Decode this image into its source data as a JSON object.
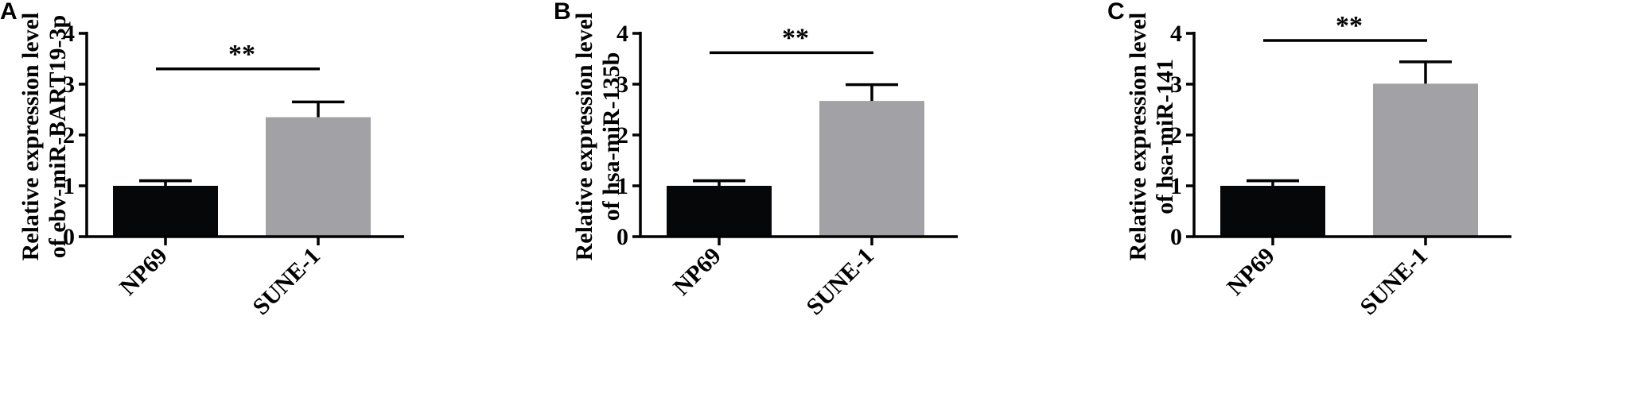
{
  "chart_data": [
    {
      "type": "bar",
      "panel": "A",
      "ylabel_lines": [
        "Relative expression level",
        "of ebv-miR-BART19-3p"
      ],
      "categories": [
        "NP69",
        "SUNE-1"
      ],
      "values": [
        1.0,
        2.35
      ],
      "errors": [
        0.1,
        0.3
      ],
      "ylim": [
        0,
        4
      ],
      "yticks": [
        "0",
        "1",
        "2",
        "3",
        "4"
      ],
      "significance": {
        "label": "**",
        "y": 3.3
      },
      "colors": [
        "#050708",
        "#a2a1a6"
      ],
      "grid": false
    },
    {
      "type": "bar",
      "panel": "B",
      "ylabel_lines": [
        "Relative expression level",
        "of hsa-miR-135b"
      ],
      "categories": [
        "NP69",
        "SUNE-1"
      ],
      "values": [
        1.0,
        2.67
      ],
      "errors": [
        0.1,
        0.32
      ],
      "ylim": [
        0,
        4
      ],
      "yticks": [
        "0",
        "1",
        "2",
        "3",
        "4"
      ],
      "significance": {
        "label": "**",
        "y": 3.62
      },
      "colors": [
        "#050708",
        "#a2a1a6"
      ],
      "grid": false
    },
    {
      "type": "bar",
      "panel": "C",
      "ylabel_lines": [
        "Relative expression level",
        "of hsa-miR-141"
      ],
      "categories": [
        "NP69",
        "SUNE-1"
      ],
      "values": [
        1.0,
        3.01
      ],
      "errors": [
        0.1,
        0.43
      ],
      "ylim": [
        0,
        4
      ],
      "yticks": [
        "0",
        "1",
        "2",
        "3",
        "4"
      ],
      "significance": {
        "label": "**",
        "y": 3.86
      },
      "colors": [
        "#050708",
        "#a2a1a6"
      ],
      "grid": false
    }
  ]
}
